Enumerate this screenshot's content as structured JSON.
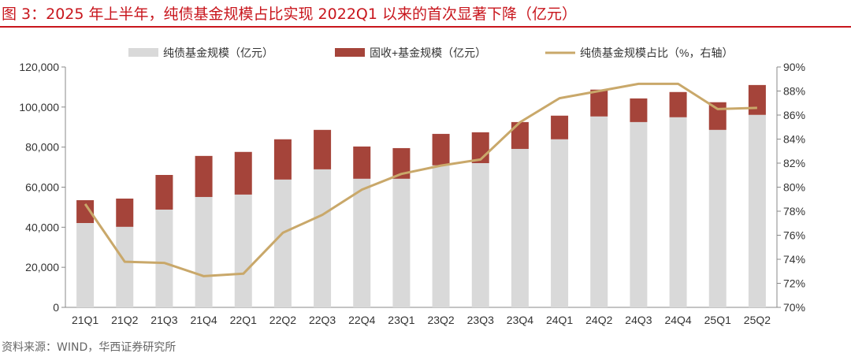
{
  "title": "图 3：2025 年上半年，纯债基金规模占比实现 2022Q1 以来的首次显著下降（亿元）",
  "footer": "资料来源：WIND，华西证券研究所",
  "colors": {
    "title": "#c8161d",
    "pure_bond": "#d9d9d9",
    "fixed_income_plus": "#a5443a",
    "ratio_line": "#c9a86a"
  },
  "chart_data": {
    "type": "bar",
    "stacked": true,
    "categories": [
      "21Q1",
      "21Q2",
      "21Q3",
      "21Q4",
      "22Q1",
      "22Q2",
      "22Q3",
      "22Q4",
      "23Q1",
      "23Q2",
      "23Q3",
      "23Q4",
      "24Q1",
      "24Q2",
      "24Q3",
      "24Q4",
      "25Q1",
      "25Q2"
    ],
    "series": [
      {
        "name": "纯债基金规模（亿元）",
        "type": "bar",
        "axis": "left",
        "values": [
          42100,
          40200,
          48800,
          55100,
          56300,
          63800,
          68900,
          64200,
          64200,
          70900,
          72000,
          79100,
          83900,
          95300,
          92500,
          94900,
          88600,
          96100
        ]
      },
      {
        "name": "固收+基金规模（亿元）",
        "type": "bar",
        "axis": "left",
        "values": [
          11400,
          14100,
          17300,
          20500,
          21300,
          20100,
          19700,
          16100,
          15300,
          15700,
          15400,
          13400,
          11800,
          13400,
          11800,
          12600,
          13800,
          14900
        ]
      },
      {
        "name": "纯债基金规模占比（%，右轴）",
        "type": "line",
        "axis": "right",
        "values": [
          78.6,
          73.8,
          73.7,
          72.6,
          72.8,
          76.2,
          77.7,
          79.8,
          81.1,
          81.8,
          82.3,
          85.4,
          87.4,
          88.0,
          88.6,
          88.6,
          86.5,
          86.6
        ]
      }
    ],
    "y_left": {
      "range": [
        0,
        120000
      ],
      "ticks": [
        "0",
        "20,000",
        "40,000",
        "60,000",
        "80,000",
        "100,000",
        "120,000"
      ]
    },
    "y_right": {
      "range": [
        70,
        90
      ],
      "ticks": [
        "70%",
        "72%",
        "74%",
        "76%",
        "78%",
        "80%",
        "82%",
        "84%",
        "86%",
        "88%",
        "90%"
      ]
    },
    "legend_position": "top",
    "grid": false
  }
}
